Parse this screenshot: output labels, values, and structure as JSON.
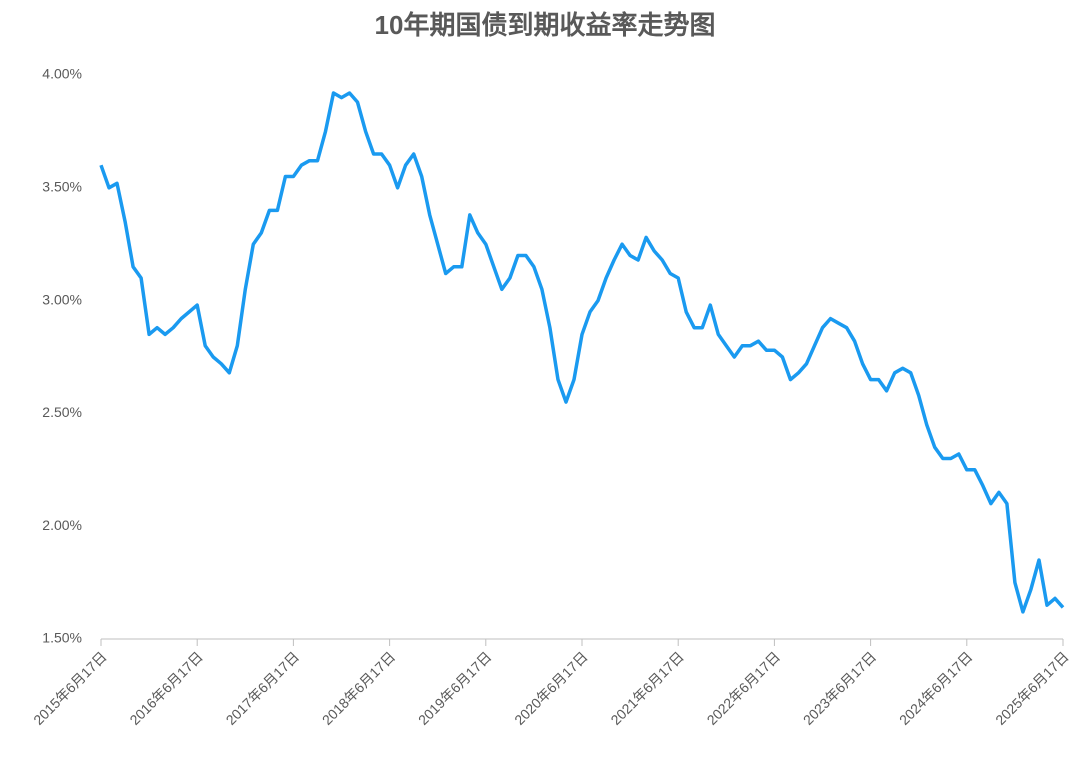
{
  "chart_data": {
    "type": "line",
    "title": "10年期国债到期收益率走势图",
    "categories": [
      "2015年6月17日",
      null,
      null,
      null,
      null,
      null,
      null,
      null,
      null,
      null,
      null,
      null,
      "2016年6月17日",
      null,
      null,
      null,
      null,
      null,
      null,
      null,
      null,
      null,
      null,
      null,
      "2017年6月17日",
      null,
      null,
      null,
      null,
      null,
      null,
      null,
      null,
      null,
      null,
      null,
      "2018年6月17日",
      null,
      null,
      null,
      null,
      null,
      null,
      null,
      null,
      null,
      null,
      null,
      "2019年6月17日",
      null,
      null,
      null,
      null,
      null,
      null,
      null,
      null,
      null,
      null,
      null,
      "2020年6月17日",
      null,
      null,
      null,
      null,
      null,
      null,
      null,
      null,
      null,
      null,
      null,
      "2021年6月17日",
      null,
      null,
      null,
      null,
      null,
      null,
      null,
      null,
      null,
      null,
      null,
      "2022年6月17日",
      null,
      null,
      null,
      null,
      null,
      null,
      null,
      null,
      null,
      null,
      null,
      "2023年6月17日",
      null,
      null,
      null,
      null,
      null,
      null,
      null,
      null,
      null,
      null,
      null,
      "2024年6月17日",
      null,
      null,
      null,
      null,
      null,
      null,
      null,
      null,
      null,
      null,
      null,
      "2025年6月17日"
    ],
    "series": [
      {
        "color": "#1a9af0",
        "values": [
          3.6,
          3.5,
          3.52,
          3.35,
          3.15,
          3.1,
          2.85,
          2.88,
          2.85,
          2.88,
          2.92,
          2.95,
          2.98,
          2.8,
          2.75,
          2.72,
          2.68,
          2.8,
          3.05,
          3.25,
          3.3,
          3.4,
          3.4,
          3.55,
          3.55,
          3.6,
          3.62,
          3.62,
          3.75,
          3.92,
          3.9,
          3.92,
          3.88,
          3.75,
          3.65,
          3.65,
          3.6,
          3.5,
          3.6,
          3.65,
          3.55,
          3.38,
          3.25,
          3.12,
          3.15,
          3.15,
          3.38,
          3.3,
          3.25,
          3.15,
          3.05,
          3.1,
          3.2,
          3.2,
          3.15,
          3.05,
          2.88,
          2.65,
          2.55,
          2.65,
          2.85,
          2.95,
          3.0,
          3.1,
          3.18,
          3.25,
          3.2,
          3.18,
          3.28,
          3.22,
          3.18,
          3.12,
          3.1,
          2.95,
          2.88,
          2.88,
          2.98,
          2.85,
          2.8,
          2.75,
          2.8,
          2.8,
          2.82,
          2.78,
          2.78,
          2.75,
          2.65,
          2.68,
          2.72,
          2.8,
          2.88,
          2.92,
          2.9,
          2.88,
          2.82,
          2.72,
          2.65,
          2.65,
          2.6,
          2.68,
          2.7,
          2.68,
          2.58,
          2.45,
          2.35,
          2.3,
          2.3,
          2.32,
          2.25,
          2.25,
          2.18,
          2.1,
          2.15,
          2.1,
          1.75,
          1.62,
          1.72,
          1.85,
          1.65,
          1.68,
          1.64
        ]
      }
    ],
    "ylim": [
      1.5,
      4.0
    ],
    "yticks": [
      {
        "value": 1.5,
        "label": "1.50%"
      },
      {
        "value": 2.0,
        "label": "2.00%"
      },
      {
        "value": 2.5,
        "label": "2.50%"
      },
      {
        "value": 3.0,
        "label": "3.00%"
      },
      {
        "value": 3.5,
        "label": "3.50%"
      },
      {
        "value": 4.0,
        "label": "4.00%"
      }
    ],
    "grid": false
  }
}
